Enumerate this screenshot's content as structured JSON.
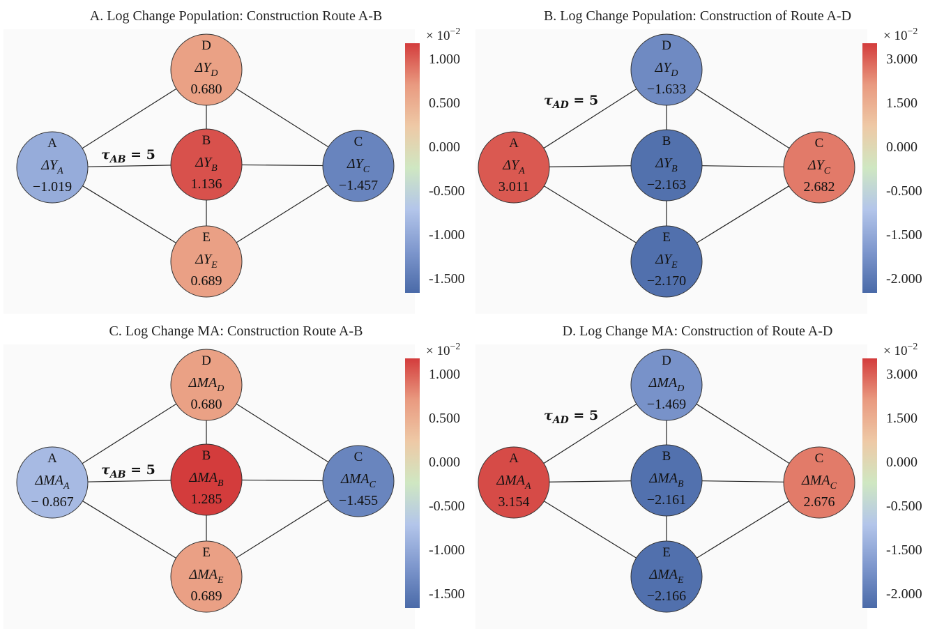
{
  "colorscale": {
    "stops": [
      "#4a6aa8",
      "#7e97cd",
      "#b3c5ea",
      "#cfe7c2",
      "#eec9a6",
      "#e99a80",
      "#d33c3c"
    ]
  },
  "panels": [
    {
      "id": "A",
      "title": "A. Log Change Population: Construction Route A-B",
      "sym": "Y",
      "tau": {
        "sub": "AB",
        "value": "5"
      },
      "multiplier": "× 10",
      "exponent": "−2",
      "ticks": [
        "1.000",
        "0.500",
        "0.000",
        "-0.500",
        "-1.000",
        "-1.500"
      ],
      "vmin": -1.75,
      "vmax": 1.25,
      "nodes": [
        {
          "id": "A",
          "name": "A",
          "sym": "ΔY",
          "sub": "A",
          "label": "−1.019",
          "value": -1.019
        },
        {
          "id": "B",
          "name": "B",
          "sym": "ΔY",
          "sub": "B",
          "label": "1.136",
          "value": 1.136
        },
        {
          "id": "C",
          "name": "C",
          "sym": "ΔY",
          "sub": "C",
          "label": "−1.457",
          "value": -1.457
        },
        {
          "id": "D",
          "name": "D",
          "sym": "ΔY",
          "sub": "D",
          "label": "0.680",
          "value": 0.68
        },
        {
          "id": "E",
          "name": "E",
          "sym": "ΔY",
          "sub": "E",
          "label": "0.689",
          "value": 0.689
        }
      ],
      "edges": [
        [
          "A",
          "B"
        ],
        [
          "A",
          "D"
        ],
        [
          "A",
          "E"
        ],
        [
          "B",
          "C"
        ],
        [
          "B",
          "D"
        ],
        [
          "B",
          "E"
        ],
        [
          "C",
          "D"
        ],
        [
          "C",
          "E"
        ]
      ]
    },
    {
      "id": "B",
      "title": "B. Log Change Population: Construction of Route A-D",
      "sym": "Y",
      "tau": {
        "sub": "AD",
        "value": "5"
      },
      "multiplier": "× 10",
      "exponent": "−2",
      "ticks": [
        "3.000",
        "1.500",
        "0.000",
        "-0.500",
        "-1.500",
        "-2.000"
      ],
      "vmin": -2.3,
      "vmax": 3.3,
      "nodes": [
        {
          "id": "A",
          "name": "A",
          "sym": "ΔY",
          "sub": "A",
          "label": "3.011",
          "value": 3.011
        },
        {
          "id": "B",
          "name": "B",
          "sym": "ΔY",
          "sub": "B",
          "label": "−2.163",
          "value": -2.163
        },
        {
          "id": "C",
          "name": "C",
          "sym": "ΔY",
          "sub": "C",
          "label": "2.682",
          "value": 2.682
        },
        {
          "id": "D",
          "name": "D",
          "sym": "ΔY",
          "sub": "D",
          "label": "−1.633",
          "value": -1.633
        },
        {
          "id": "E",
          "name": "E",
          "sym": "ΔY",
          "sub": "E",
          "label": "−2.170",
          "value": -2.17
        }
      ],
      "edges": [
        [
          "A",
          "B"
        ],
        [
          "A",
          "D"
        ],
        [
          "A",
          "E"
        ],
        [
          "B",
          "C"
        ],
        [
          "B",
          "D"
        ],
        [
          "B",
          "E"
        ],
        [
          "C",
          "D"
        ],
        [
          "C",
          "E"
        ]
      ]
    },
    {
      "id": "C",
      "title": "C. Log Change MA: Construction Route A-B",
      "sym": "MA",
      "tau": {
        "sub": "AB",
        "value": "5"
      },
      "multiplier": "× 10",
      "exponent": "−2",
      "ticks": [
        "1.000",
        "0.500",
        "0.000",
        "-0.500",
        "-1.000",
        "-1.500"
      ],
      "vmin": -1.75,
      "vmax": 1.25,
      "nodes": [
        {
          "id": "A",
          "name": "A",
          "sym": "ΔMA",
          "sub": "A",
          "label": "− 0.867",
          "value": -0.867
        },
        {
          "id": "B",
          "name": "B",
          "sym": "ΔMA",
          "sub": "B",
          "label": "1.285",
          "value": 1.285
        },
        {
          "id": "C",
          "name": "C",
          "sym": "ΔMA",
          "sub": "C",
          "label": "−1.455",
          "value": -1.455
        },
        {
          "id": "D",
          "name": "D",
          "sym": "ΔMA",
          "sub": "D",
          "label": "0.680",
          "value": 0.68
        },
        {
          "id": "E",
          "name": "E",
          "sym": "ΔMA",
          "sub": "E",
          "label": "0.689",
          "value": 0.689
        }
      ],
      "edges": [
        [
          "A",
          "B"
        ],
        [
          "A",
          "D"
        ],
        [
          "A",
          "E"
        ],
        [
          "B",
          "C"
        ],
        [
          "B",
          "D"
        ],
        [
          "B",
          "E"
        ],
        [
          "C",
          "D"
        ],
        [
          "C",
          "E"
        ]
      ]
    },
    {
      "id": "D",
      "title": "D. Log Change MA: Construction of Route A-D",
      "sym": "MA",
      "tau": {
        "sub": "AD",
        "value": "5"
      },
      "multiplier": "× 10",
      "exponent": "−2",
      "ticks": [
        "3.000",
        "1.500",
        "0.000",
        "-0.500",
        "-1.500",
        "-2.000"
      ],
      "vmin": -2.3,
      "vmax": 3.3,
      "nodes": [
        {
          "id": "A",
          "name": "A",
          "sym": "ΔMA",
          "sub": "A",
          "label": "3.154",
          "value": 3.154
        },
        {
          "id": "B",
          "name": "B",
          "sym": "ΔMA",
          "sub": "B",
          "label": "−2.161",
          "value": -2.161
        },
        {
          "id": "C",
          "name": "C",
          "sym": "ΔMA",
          "sub": "C",
          "label": "2.676",
          "value": 2.676
        },
        {
          "id": "D",
          "name": "D",
          "sym": "ΔMA",
          "sub": "D",
          "label": "−1.469",
          "value": -1.469
        },
        {
          "id": "E",
          "name": "E",
          "sym": "ΔMA",
          "sub": "E",
          "label": "−2.166",
          "value": -2.166
        }
      ],
      "edges": [
        [
          "A",
          "B"
        ],
        [
          "A",
          "D"
        ],
        [
          "A",
          "E"
        ],
        [
          "B",
          "C"
        ],
        [
          "B",
          "D"
        ],
        [
          "B",
          "E"
        ],
        [
          "C",
          "D"
        ],
        [
          "C",
          "E"
        ]
      ]
    }
  ]
}
